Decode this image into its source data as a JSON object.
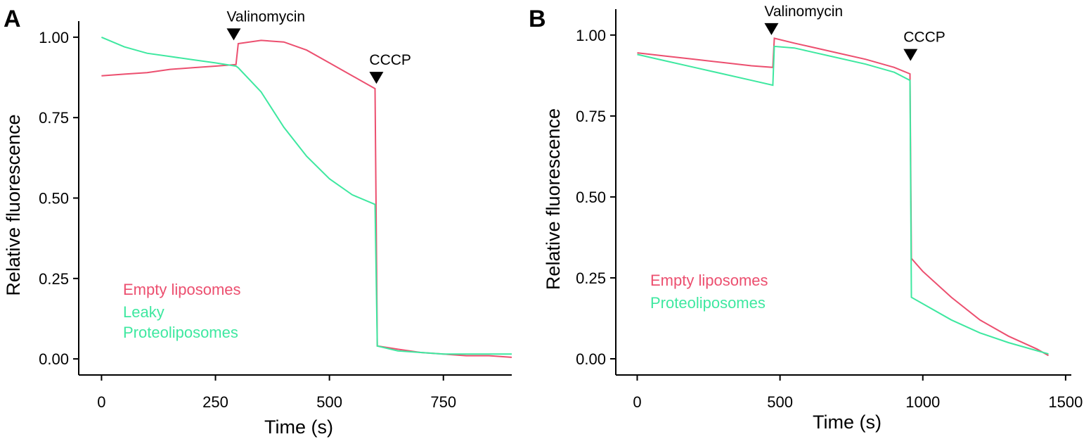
{
  "chart_data": [
    {
      "type": "line",
      "panel_label": "A",
      "xlabel": "Time (s)",
      "ylabel": "Relative fluorescence",
      "x": [
        0,
        50,
        100,
        150,
        200,
        250,
        295,
        300,
        350,
        400,
        450,
        500,
        550,
        600,
        605,
        650,
        700,
        750,
        800,
        850,
        900
      ],
      "series": [
        {
          "name": "Empty liposomes",
          "color": "#ec4f6f",
          "values": [
            0.88,
            0.885,
            0.89,
            0.9,
            0.905,
            0.91,
            0.915,
            0.98,
            0.99,
            0.985,
            0.96,
            0.92,
            0.88,
            0.84,
            0.04,
            0.03,
            0.02,
            0.015,
            0.01,
            0.01,
            0.005
          ]
        },
        {
          "name": "Leaky Proteoliposomes",
          "color": "#3ee8a0",
          "values": [
            1.0,
            0.97,
            0.95,
            0.94,
            0.93,
            0.92,
            0.91,
            0.905,
            0.83,
            0.72,
            0.63,
            0.56,
            0.51,
            0.48,
            0.04,
            0.025,
            0.02,
            0.015,
            0.015,
            0.015,
            0.015
          ]
        }
      ],
      "annotations": [
        {
          "text": "Valinomycin",
          "x": 290,
          "y": 0.99
        },
        {
          "text": "CCCP",
          "x": 603,
          "y": 0.855
        }
      ],
      "xlim": [
        -50,
        900
      ],
      "xticks": [
        0,
        250,
        500,
        750
      ],
      "ylim": [
        -0.05,
        1.05
      ],
      "yticks": [
        {
          "value": 0,
          "label": "0.00"
        },
        {
          "value": 0.25,
          "label": "0.25"
        },
        {
          "value": 0.5,
          "label": "0.50"
        },
        {
          "value": 0.75,
          "label": "0.75"
        },
        {
          "value": 1,
          "label": "1.00"
        }
      ]
    },
    {
      "type": "line",
      "panel_label": "B",
      "xlabel": "Time (s)",
      "ylabel": "Relative fluorescence",
      "x": [
        0,
        100,
        200,
        300,
        400,
        475,
        480,
        550,
        600,
        700,
        800,
        900,
        955,
        960,
        1000,
        1100,
        1200,
        1300,
        1400,
        1440
      ],
      "series": [
        {
          "name": "Empty liposomes",
          "color": "#ec4f6f",
          "values": [
            0.945,
            0.935,
            0.925,
            0.915,
            0.905,
            0.9,
            0.99,
            0.975,
            0.965,
            0.945,
            0.925,
            0.9,
            0.88,
            0.31,
            0.27,
            0.19,
            0.12,
            0.07,
            0.03,
            0.01
          ]
        },
        {
          "name": "Proteoliposomes",
          "color": "#3ee8a0",
          "values": [
            0.94,
            0.92,
            0.9,
            0.88,
            0.86,
            0.845,
            0.965,
            0.96,
            0.95,
            0.93,
            0.91,
            0.885,
            0.86,
            0.19,
            0.17,
            0.12,
            0.08,
            0.05,
            0.025,
            0.015
          ]
        }
      ],
      "annotations": [
        {
          "text": "Valinomycin",
          "x": 470,
          "y": 1.0
        },
        {
          "text": "CCCP",
          "x": 957,
          "y": 0.92
        }
      ],
      "xlim": [
        -75,
        1520
      ],
      "xticks": [
        0,
        500,
        1000,
        1500
      ],
      "ylim": [
        -0.05,
        1.08
      ],
      "yticks": [
        {
          "value": 0,
          "label": "0.00"
        },
        {
          "value": 0.25,
          "label": "0.25"
        },
        {
          "value": 0.5,
          "label": "0.50"
        },
        {
          "value": 0.75,
          "label": "0.75"
        },
        {
          "value": 1,
          "label": "1.00"
        }
      ]
    }
  ]
}
